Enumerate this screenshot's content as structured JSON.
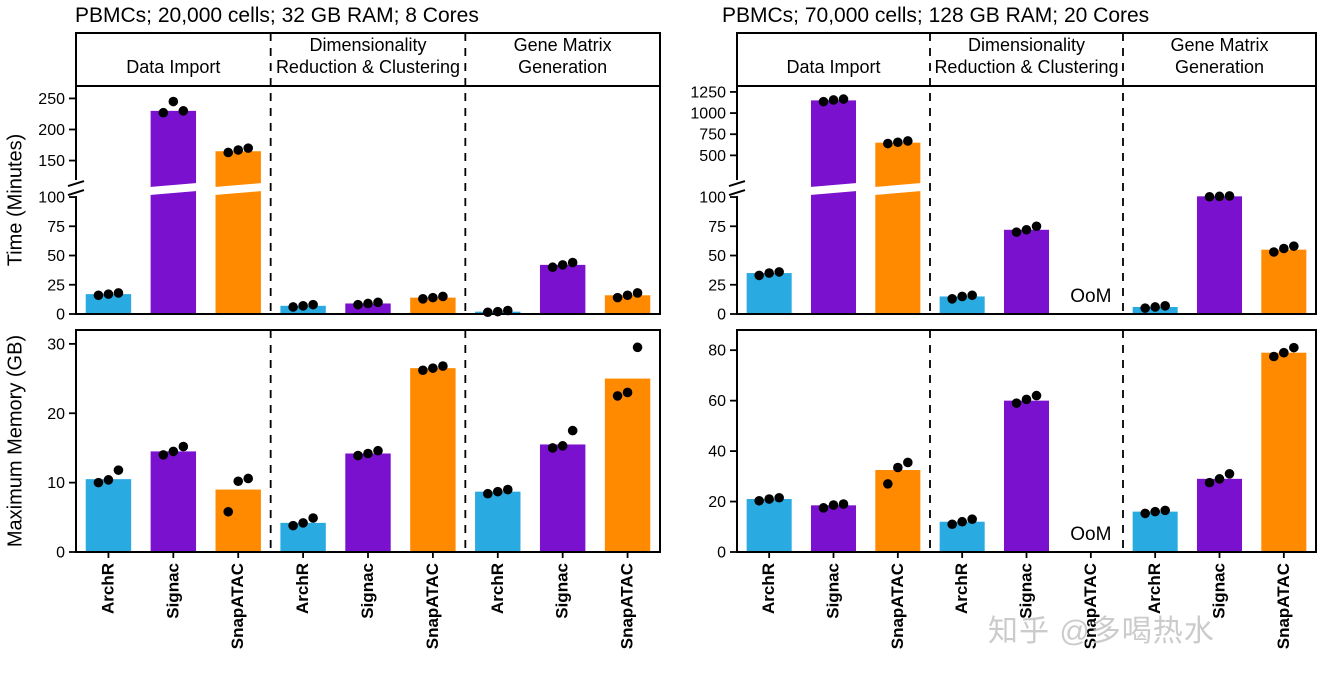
{
  "meta": {
    "left_title": "PBMCs; 20,000 cells; 32 GB RAM; 8 Cores",
    "right_title": "PBMCs; 70,000 cells; 128 GB RAM; 20 Cores",
    "time_ylabel": "Time (Minutes)",
    "memory_ylabel": "Maximum Memory (GB)",
    "oom_label": "OoM",
    "watermark": "知乎 @多喝热水"
  },
  "colors": {
    "ArchR": "#29ABE2",
    "Signac": "#7A11CF",
    "SnapATAC": "#FF8A00",
    "point": "#000000"
  },
  "tools": [
    "ArchR",
    "Signac",
    "SnapATAC"
  ],
  "task_labels": [
    [
      "Data Import"
    ],
    [
      "Dimensionality",
      "Reduction & Clustering"
    ],
    [
      "Gene Matrix",
      "Generation"
    ]
  ],
  "chart_data": [
    {
      "id": "time-20k",
      "type": "bar",
      "title": "PBMCs; 20,000 cells; 32 GB RAM; 8 Cores",
      "ylabel": "Time (Minutes)",
      "axis": {
        "broken": true,
        "lower": {
          "min": 0,
          "max": 100,
          "ticks": [
            0,
            25,
            50,
            75,
            100
          ]
        },
        "upper": {
          "min": 150,
          "max": 270,
          "ticks": [
            150,
            200,
            250
          ]
        },
        "lower_frac": 0.513,
        "gap_frac": 0.16
      },
      "groups": [
        {
          "task": "Data Import",
          "bars": [
            {
              "tool": "ArchR",
              "value": 17,
              "points": [
                16,
                17,
                18
              ]
            },
            {
              "tool": "Signac",
              "value": 230,
              "points": [
                227,
                245,
                230
              ]
            },
            {
              "tool": "SnapATAC",
              "value": 165,
              "points": [
                163,
                167,
                170
              ]
            }
          ]
        },
        {
          "task": "Dimensionality Reduction & Clustering",
          "bars": [
            {
              "tool": "ArchR",
              "value": 7,
              "points": [
                6,
                7,
                8
              ]
            },
            {
              "tool": "Signac",
              "value": 9,
              "points": [
                8,
                9,
                10
              ]
            },
            {
              "tool": "SnapATAC",
              "value": 14,
              "points": [
                13,
                14,
                15
              ]
            }
          ]
        },
        {
          "task": "Gene Matrix Generation",
          "bars": [
            {
              "tool": "ArchR",
              "value": 2,
              "points": [
                1.5,
                2,
                3
              ]
            },
            {
              "tool": "Signac",
              "value": 42,
              "points": [
                40,
                42,
                44
              ]
            },
            {
              "tool": "SnapATAC",
              "value": 16,
              "points": [
                14,
                16,
                18
              ]
            }
          ]
        }
      ]
    },
    {
      "id": "time-70k",
      "type": "bar",
      "title": "PBMCs; 70,000 cells; 128 GB RAM; 20 Cores",
      "ylabel": "Time (Minutes)",
      "axis": {
        "broken": true,
        "lower": {
          "min": 0,
          "max": 100,
          "ticks": [
            0,
            25,
            50,
            75,
            100
          ]
        },
        "upper": {
          "min": 250,
          "max": 1320,
          "ticks": [
            500,
            750,
            1000,
            1250
          ]
        },
        "lower_frac": 0.513,
        "gap_frac": 0.09
      },
      "groups": [
        {
          "task": "Data Import",
          "bars": [
            {
              "tool": "ArchR",
              "value": 35,
              "points": [
                33,
                35,
                36
              ]
            },
            {
              "tool": "Signac",
              "value": 1150,
              "points": [
                1135,
                1155,
                1165
              ]
            },
            {
              "tool": "SnapATAC",
              "value": 650,
              "points": [
                640,
                655,
                670
              ]
            }
          ]
        },
        {
          "task": "Dimensionality Reduction & Clustering",
          "bars": [
            {
              "tool": "ArchR",
              "value": 15,
              "points": [
                13,
                15,
                16
              ]
            },
            {
              "tool": "Signac",
              "value": 72,
              "points": [
                70,
                72,
                75
              ]
            },
            {
              "tool": "SnapATAC",
              "value": null,
              "oom": true,
              "points": []
            }
          ]
        },
        {
          "task": "Gene Matrix Generation",
          "bars": [
            {
              "tool": "ArchR",
              "value": 6,
              "points": [
                5,
                6,
                7
              ]
            },
            {
              "tool": "Signac",
              "value": 105,
              "points": [
                102,
                105,
                108
              ]
            },
            {
              "tool": "SnapATAC",
              "value": 55,
              "points": [
                53,
                56,
                58
              ]
            }
          ]
        }
      ]
    },
    {
      "id": "mem-20k",
      "type": "bar",
      "title": "PBMCs; 20,000 cells; 32 GB RAM; 8 Cores",
      "ylabel": "Maximum Memory (GB)",
      "axis": {
        "broken": false,
        "max": 32,
        "ticks": [
          0,
          10,
          20,
          30
        ]
      },
      "groups": [
        {
          "task": "Data Import",
          "bars": [
            {
              "tool": "ArchR",
              "value": 10.5,
              "points": [
                10,
                10.4,
                11.8
              ]
            },
            {
              "tool": "Signac",
              "value": 14.5,
              "points": [
                14,
                14.5,
                15.2
              ]
            },
            {
              "tool": "SnapATAC",
              "value": 9,
              "points": [
                5.8,
                10.2,
                10.6
              ]
            }
          ]
        },
        {
          "task": "Dimensionality Reduction & Clustering",
          "bars": [
            {
              "tool": "ArchR",
              "value": 4.2,
              "points": [
                3.8,
                4.2,
                4.9
              ]
            },
            {
              "tool": "Signac",
              "value": 14.2,
              "points": [
                13.9,
                14.2,
                14.6
              ]
            },
            {
              "tool": "SnapATAC",
              "value": 26.5,
              "points": [
                26.2,
                26.5,
                26.8
              ]
            }
          ]
        },
        {
          "task": "Gene Matrix Generation",
          "bars": [
            {
              "tool": "ArchR",
              "value": 8.7,
              "points": [
                8.4,
                8.7,
                9.0
              ]
            },
            {
              "tool": "Signac",
              "value": 15.5,
              "points": [
                15,
                15.3,
                17.5
              ]
            },
            {
              "tool": "SnapATAC",
              "value": 25,
              "points": [
                22.5,
                23,
                29.5
              ]
            }
          ]
        }
      ]
    },
    {
      "id": "mem-70k",
      "type": "bar",
      "title": "PBMCs; 70,000 cells; 128 GB RAM; 20 Cores",
      "ylabel": "Maximum Memory (GB)",
      "axis": {
        "broken": false,
        "max": 88,
        "ticks": [
          0,
          20,
          40,
          60,
          80
        ]
      },
      "groups": [
        {
          "task": "Data Import",
          "bars": [
            {
              "tool": "ArchR",
              "value": 21,
              "points": [
                20.3,
                21,
                21.5
              ]
            },
            {
              "tool": "Signac",
              "value": 18.5,
              "points": [
                17.5,
                18.6,
                19
              ]
            },
            {
              "tool": "SnapATAC",
              "value": 32.5,
              "points": [
                27,
                33.5,
                35.5
              ]
            }
          ]
        },
        {
          "task": "Dimensionality Reduction & Clustering",
          "bars": [
            {
              "tool": "ArchR",
              "value": 12,
              "points": [
                11,
                12,
                13
              ]
            },
            {
              "tool": "Signac",
              "value": 60,
              "points": [
                59,
                60.5,
                62
              ]
            },
            {
              "tool": "SnapATAC",
              "value": null,
              "oom": true,
              "points": []
            }
          ]
        },
        {
          "task": "Gene Matrix Generation",
          "bars": [
            {
              "tool": "ArchR",
              "value": 16,
              "points": [
                15.3,
                16,
                16.5
              ]
            },
            {
              "tool": "Signac",
              "value": 29,
              "points": [
                27.5,
                29,
                31
              ]
            },
            {
              "tool": "SnapATAC",
              "value": 79,
              "points": [
                77.5,
                79,
                81
              ]
            }
          ]
        }
      ]
    }
  ]
}
